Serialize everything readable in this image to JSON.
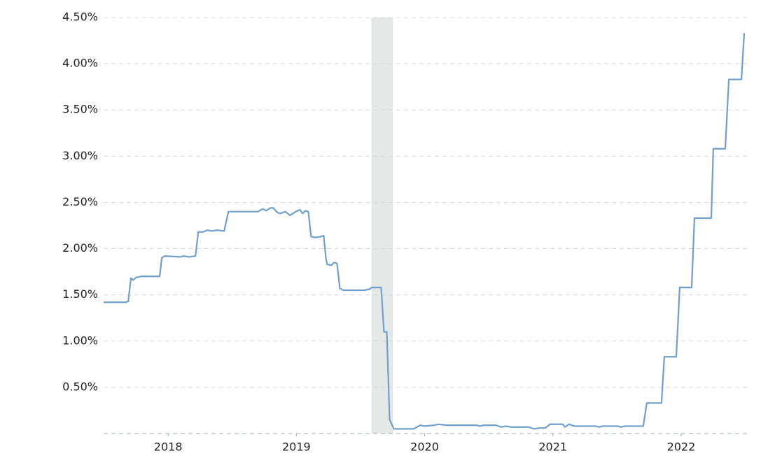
{
  "chart_data": {
    "type": "line",
    "x": [
      2017.497,
      2017.672,
      2017.689,
      2017.71,
      2017.727,
      2017.754,
      2017.798,
      2017.934,
      2017.951,
      2017.973,
      2018.098,
      2018.12,
      2018.164,
      2018.213,
      2018.235,
      2018.273,
      2018.306,
      2018.339,
      2018.383,
      2018.437,
      2018.47,
      2018.699,
      2018.738,
      2018.765,
      2018.798,
      2018.82,
      2018.852,
      2018.874,
      2018.913,
      2018.951,
      2018.995,
      2019.027,
      2019.049,
      2019.071,
      2019.093,
      2019.115,
      2019.148,
      2019.191,
      2019.213,
      2019.23,
      2019.24,
      2019.273,
      2019.295,
      2019.317,
      2019.339,
      2019.366,
      2019.53,
      2019.568,
      2019.59,
      2019.661,
      2019.683,
      2019.705,
      2019.727,
      2019.76,
      2019.913,
      2019.967,
      2019.995,
      2020.077,
      2020.104,
      2020.175,
      2020.404,
      2020.432,
      2020.459,
      2020.557,
      2020.596,
      2020.634,
      2020.678,
      2020.814,
      2020.852,
      2020.896,
      2020.94,
      2020.978,
      2021.077,
      2021.093,
      2021.126,
      2021.169,
      2021.333,
      2021.361,
      2021.388,
      2021.508,
      2021.53,
      2021.563,
      2021.705,
      2021.732,
      2021.847,
      2021.869,
      2021.962,
      2021.989,
      2022.082,
      2022.104,
      2022.235,
      2022.251,
      2022.344,
      2022.372,
      2022.47,
      2022.492
    ],
    "series": [
      {
        "color": "#6f9fcf",
        "values": [
          1.42,
          1.42,
          1.43,
          1.68,
          1.66,
          1.69,
          1.7,
          1.7,
          1.9,
          1.92,
          1.91,
          1.92,
          1.91,
          1.92,
          2.18,
          2.18,
          2.2,
          2.19,
          2.2,
          2.19,
          2.4,
          2.4,
          2.43,
          2.41,
          2.44,
          2.44,
          2.39,
          2.38,
          2.4,
          2.36,
          2.4,
          2.42,
          2.38,
          2.41,
          2.4,
          2.13,
          2.12,
          2.13,
          2.14,
          1.9,
          1.83,
          1.82,
          1.85,
          1.84,
          1.57,
          1.55,
          1.55,
          1.56,
          1.58,
          1.58,
          1.1,
          1.1,
          0.15,
          0.05,
          0.05,
          0.09,
          0.08,
          0.09,
          0.1,
          0.09,
          0.09,
          0.08,
          0.09,
          0.09,
          0.07,
          0.08,
          0.07,
          0.07,
          0.05,
          0.06,
          0.06,
          0.1,
          0.1,
          0.07,
          0.1,
          0.08,
          0.08,
          0.07,
          0.08,
          0.08,
          0.07,
          0.08,
          0.08,
          0.33,
          0.33,
          0.83,
          0.83,
          1.58,
          1.58,
          2.33,
          2.33,
          3.08,
          3.08,
          3.83,
          3.83,
          4.33
        ]
      }
    ],
    "xlim": [
      2017.497,
      2022.519
    ],
    "xticks": [
      2018,
      2019,
      2020,
      2021,
      2022
    ],
    "ylim": [
      0,
      4.5
    ],
    "yticks": [
      {
        "value": 0.5,
        "label": "0.50%"
      },
      {
        "value": 1,
        "label": "1.00%"
      },
      {
        "value": 1.5,
        "label": "1.50%"
      },
      {
        "value": 2,
        "label": "2.00%"
      },
      {
        "value": 2.5,
        "label": "2.50%"
      },
      {
        "value": 3,
        "label": "3.00%"
      },
      {
        "value": 3.5,
        "label": "3.50%"
      },
      {
        "value": 4,
        "label": "4.00%"
      },
      {
        "value": 4.5,
        "label": "4.50%"
      }
    ],
    "grid": true,
    "shaded_region": [
      2019.585,
      2019.754
    ],
    "shade_color": "#e6e8e8"
  }
}
